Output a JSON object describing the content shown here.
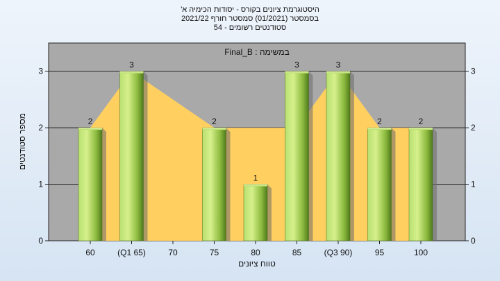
{
  "chart_data": {
    "type": "bar",
    "title_lines": [
      "היסטוגרמת ציונים בקורס - יסודות הכימיה א'",
      "בסמסטר  (01/2021)  סמסטר חורף 2021/22",
      "סטודנטים רשומים - 54"
    ],
    "legend_text": "Final_B : במשימה",
    "xlabel": "טווח ציונים",
    "ylabel": "מספר סטודנטים",
    "ylim": [
      0,
      3.5
    ],
    "yticks": [
      0,
      1,
      2,
      3
    ],
    "categories": [
      "60",
      "(Q1 65)",
      "70",
      "75",
      "80",
      "85",
      "(Q3 90)",
      "95",
      "100"
    ],
    "values": [
      2,
      3,
      0,
      2,
      1,
      3,
      3,
      2,
      2
    ],
    "data_labels": [
      "2",
      "3",
      "",
      "2",
      "1",
      "3",
      "3",
      "2",
      "2"
    ],
    "area_series": [
      2,
      3,
      2.5,
      2,
      2,
      2,
      3,
      2,
      2
    ],
    "grid": true,
    "colors": {
      "plot_bg": "#a9a9a9",
      "bar_light": "#d6f08c",
      "bar_mid": "#9ccc4a",
      "bar_dark": "#4f7a1c",
      "area": "#ffd060"
    }
  }
}
